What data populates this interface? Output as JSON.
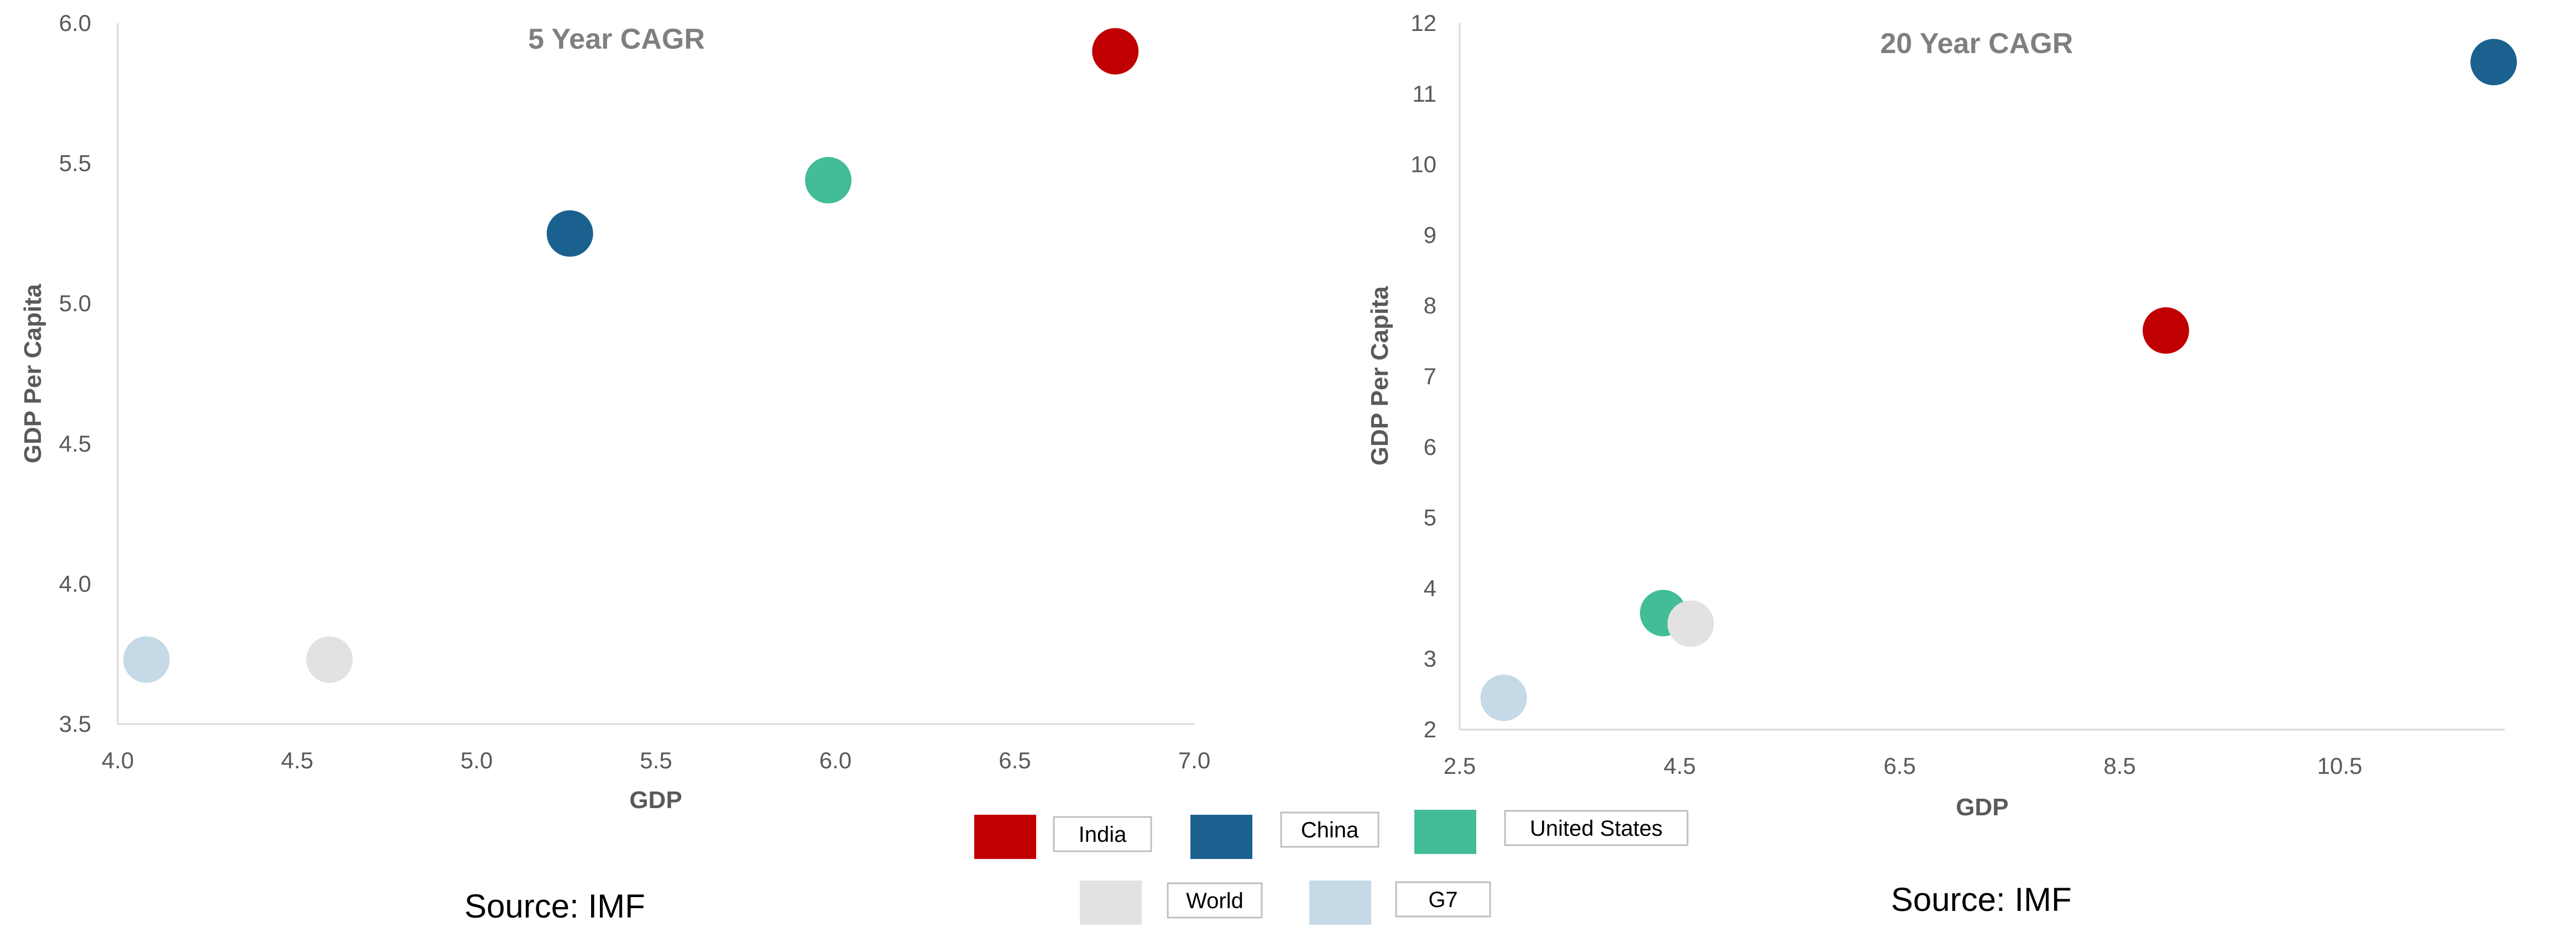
{
  "chart_data": [
    {
      "type": "scatter",
      "title": "5 Year CAGR",
      "xlabel": "GDP",
      "ylabel": "GDP Per Capita",
      "xlim": [
        4.0,
        7.0
      ],
      "ylim": [
        3.5,
        6.0
      ],
      "xticks": [
        "4.0",
        "4.5",
        "5.0",
        "5.5",
        "6.0",
        "6.5",
        "7.0"
      ],
      "yticks": [
        "3.5",
        "4.0",
        "4.5",
        "5.0",
        "5.5",
        "6.0"
      ],
      "grid": false,
      "series": [
        {
          "name": "India",
          "x": 6.78,
          "y": 5.9
        },
        {
          "name": "China",
          "x": 5.26,
          "y": 5.25
        },
        {
          "name": "United States",
          "x": 5.98,
          "y": 5.44
        },
        {
          "name": "World",
          "x": 4.59,
          "y": 3.73
        },
        {
          "name": "G7",
          "x": 4.08,
          "y": 3.73
        }
      ],
      "source": "Source:  IMF"
    },
    {
      "type": "scatter",
      "title": "20 Year CAGR",
      "xlabel": "GDP",
      "ylabel": "GDP Per Capita",
      "xlim": [
        2.5,
        12.0
      ],
      "ylim": [
        2,
        12
      ],
      "xticks": [
        "2.5",
        "4.5",
        "6.5",
        "8.5",
        "10.5"
      ],
      "yticks": [
        "2",
        "3",
        "4",
        "5",
        "6",
        "7",
        "8",
        "9",
        "10",
        "11",
        "12"
      ],
      "grid": false,
      "series": [
        {
          "name": "India",
          "x": 8.92,
          "y": 7.65
        },
        {
          "name": "China",
          "x": 11.9,
          "y": 11.45
        },
        {
          "name": "United States",
          "x": 4.35,
          "y": 3.65
        },
        {
          "name": "World",
          "x": 4.6,
          "y": 3.5
        },
        {
          "name": "G7",
          "x": 2.9,
          "y": 2.45
        }
      ],
      "source": "Source: IMF"
    }
  ],
  "legend": {
    "placement": "bottom-center",
    "items": [
      {
        "name": "India",
        "color": "#C00000"
      },
      {
        "name": "China",
        "color": "#1B6190"
      },
      {
        "name": "United States",
        "color": "#43BC98"
      },
      {
        "name": "World",
        "color": "#E2E2E2"
      },
      {
        "name": "G7",
        "color": "#C5D9E6"
      }
    ]
  },
  "colors": {
    "India": "#C00000",
    "China": "#1B6190",
    "United States": "#43BC98",
    "World": "#E2E2E2",
    "G7": "#C5D9E6"
  }
}
